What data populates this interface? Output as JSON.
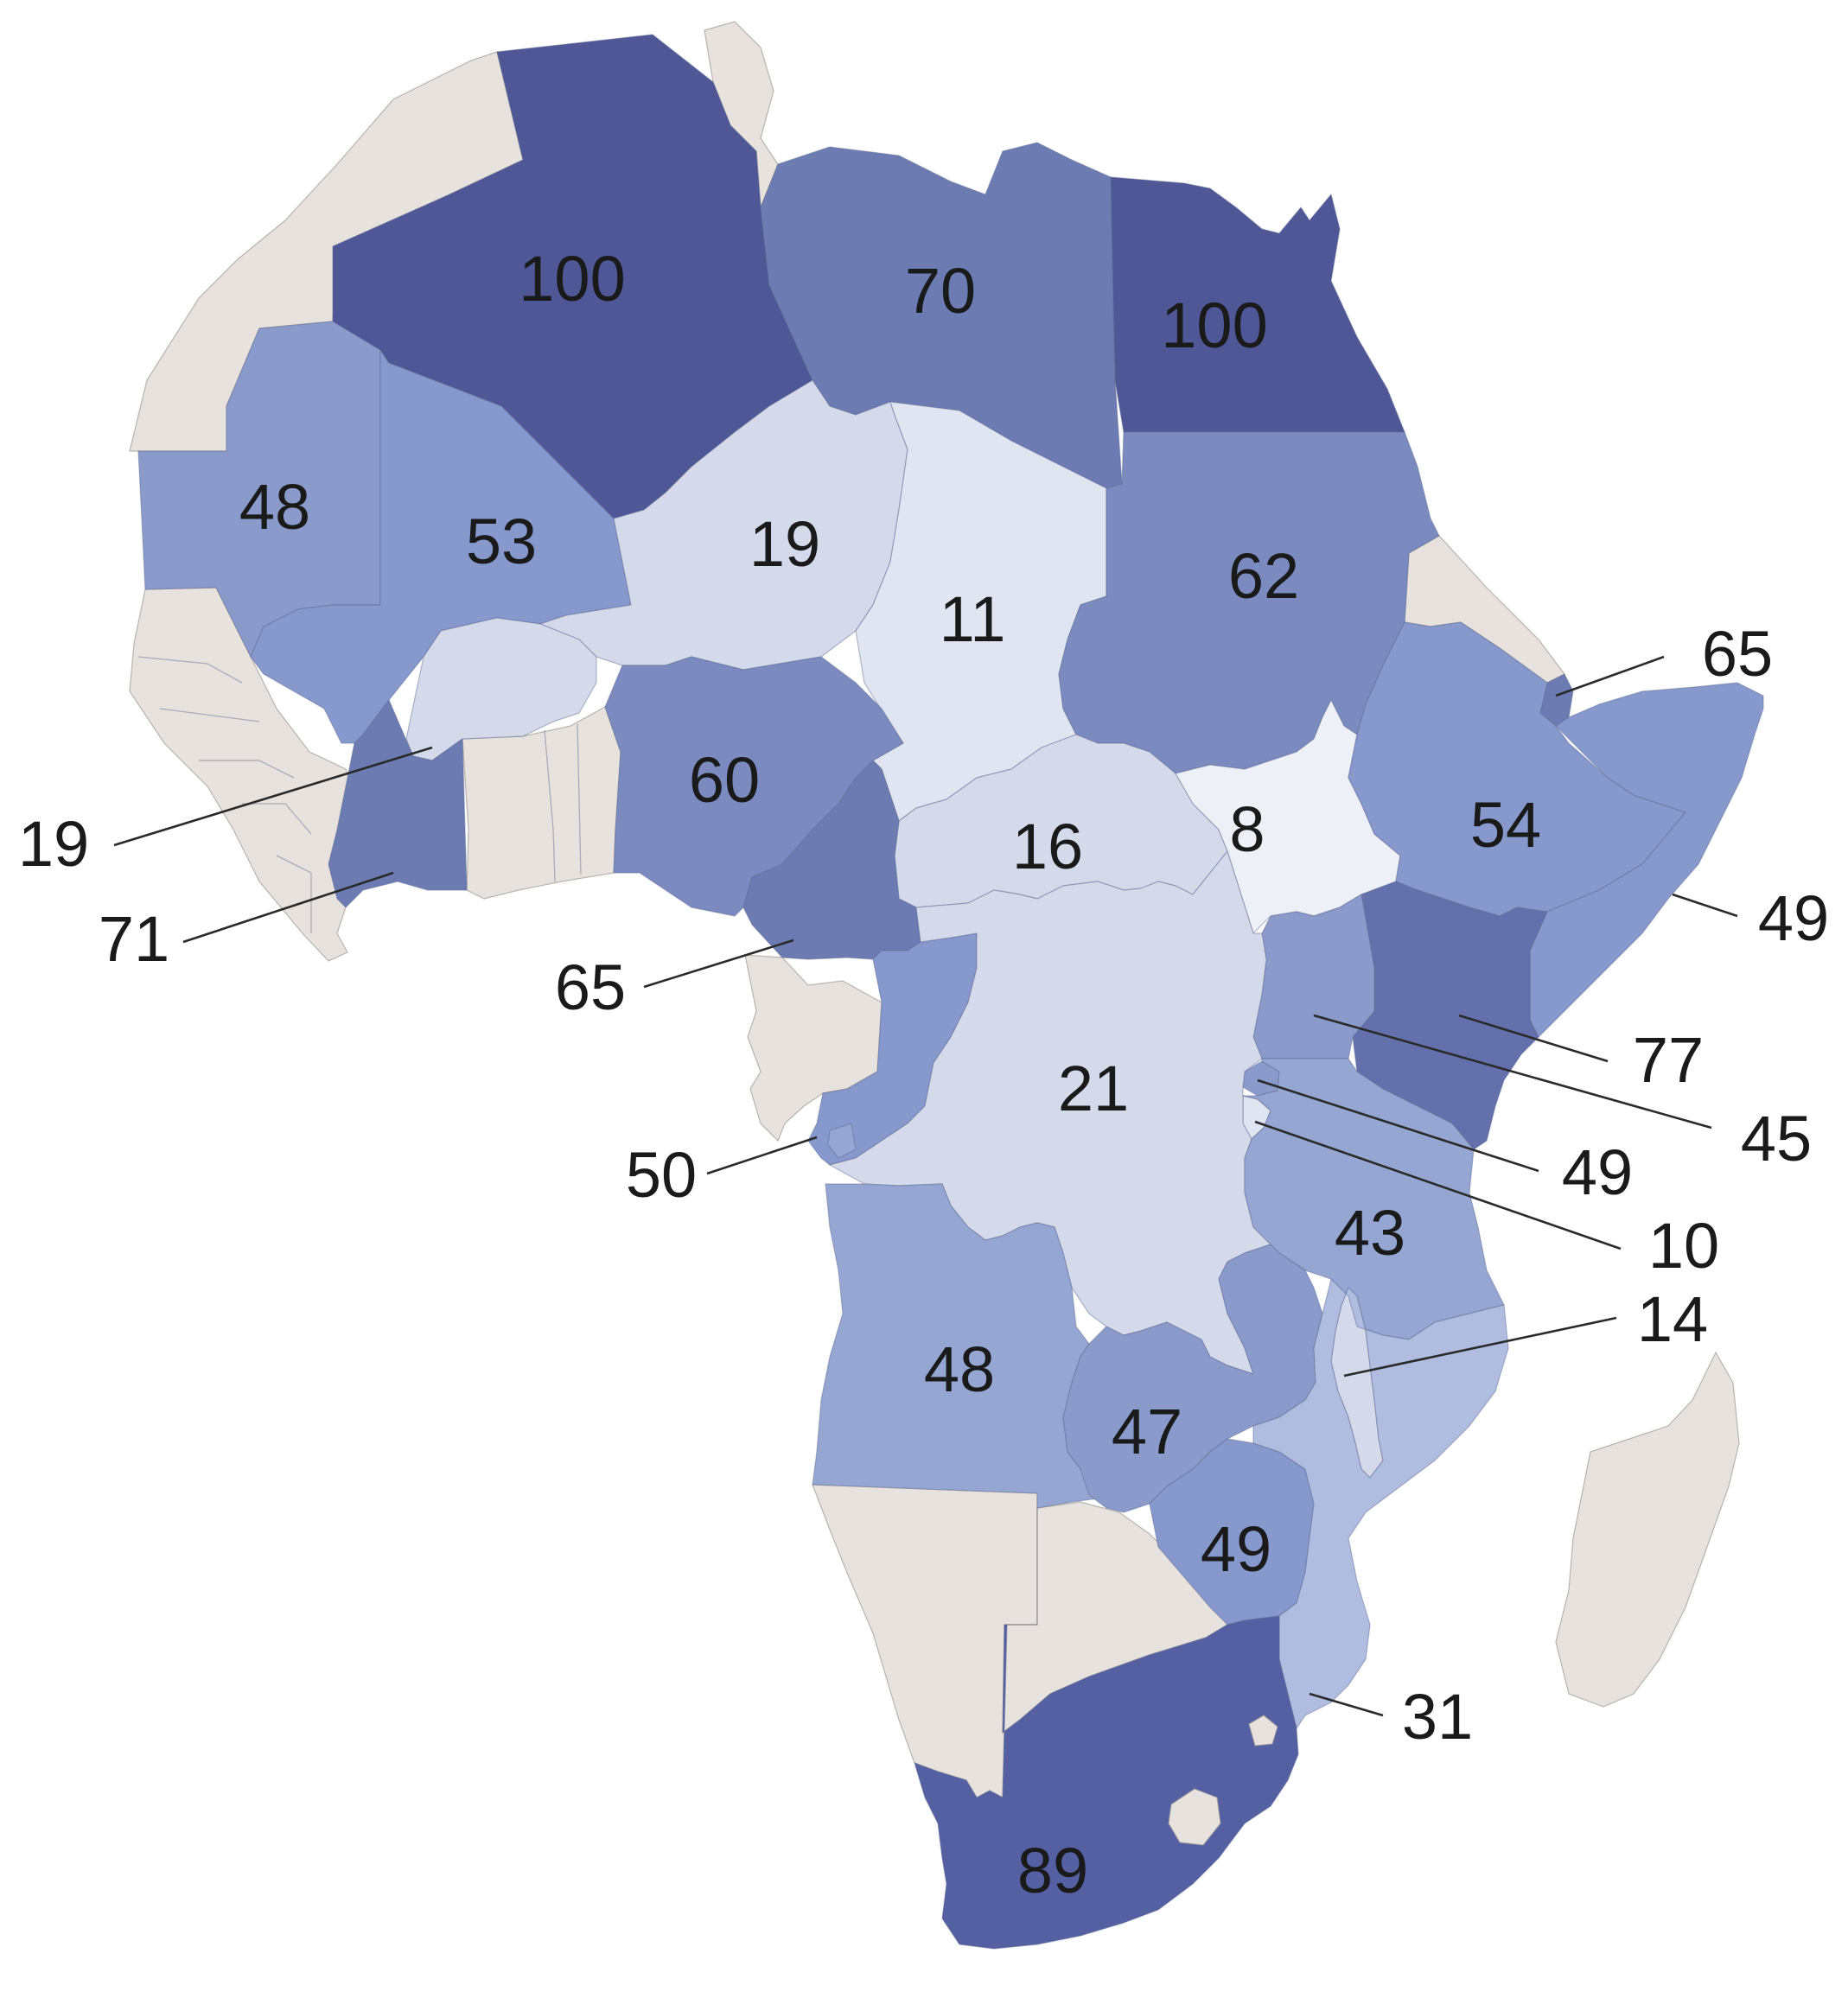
{
  "map": {
    "colors": {
      "no_data": "#e7e2dd",
      "scale_low": "#e1e5f2",
      "scale_high": "#4f5796"
    },
    "regions": [
      {
        "name": "Algeria",
        "value": 100
      },
      {
        "name": "Libya",
        "value": 70
      },
      {
        "name": "Egypt",
        "value": 100
      },
      {
        "name": "Mauritania",
        "value": 48
      },
      {
        "name": "Mali",
        "value": 53
      },
      {
        "name": "Niger",
        "value": 19
      },
      {
        "name": "Chad",
        "value": 11
      },
      {
        "name": "Sudan",
        "value": 62
      },
      {
        "name": "Djibouti",
        "value": 65
      },
      {
        "name": "Burkina Faso",
        "value": 19
      },
      {
        "name": "Nigeria",
        "value": 60
      },
      {
        "name": "Central African Republic",
        "value": 16
      },
      {
        "name": "South Sudan",
        "value": 8
      },
      {
        "name": "Ethiopia",
        "value": 54
      },
      {
        "name": "Somalia",
        "value": 49
      },
      {
        "name": "Cote d'Ivoire",
        "value": 71
      },
      {
        "name": "Cameroon",
        "value": 65
      },
      {
        "name": "Kenya",
        "value": 77
      },
      {
        "name": "Uganda",
        "value": 45
      },
      {
        "name": "Rwanda",
        "value": 49
      },
      {
        "name": "Burundi",
        "value": 10
      },
      {
        "name": "Republic of the Congo",
        "value": 50
      },
      {
        "name": "DR Congo",
        "value": 21
      },
      {
        "name": "Tanzania",
        "value": 43
      },
      {
        "name": "Malawi",
        "value": 14
      },
      {
        "name": "Angola",
        "value": 48
      },
      {
        "name": "Zambia",
        "value": 47
      },
      {
        "name": "Zimbabwe",
        "value": 49
      },
      {
        "name": "Mozambique",
        "value": 31
      },
      {
        "name": "South Africa",
        "value": 89
      }
    ]
  }
}
